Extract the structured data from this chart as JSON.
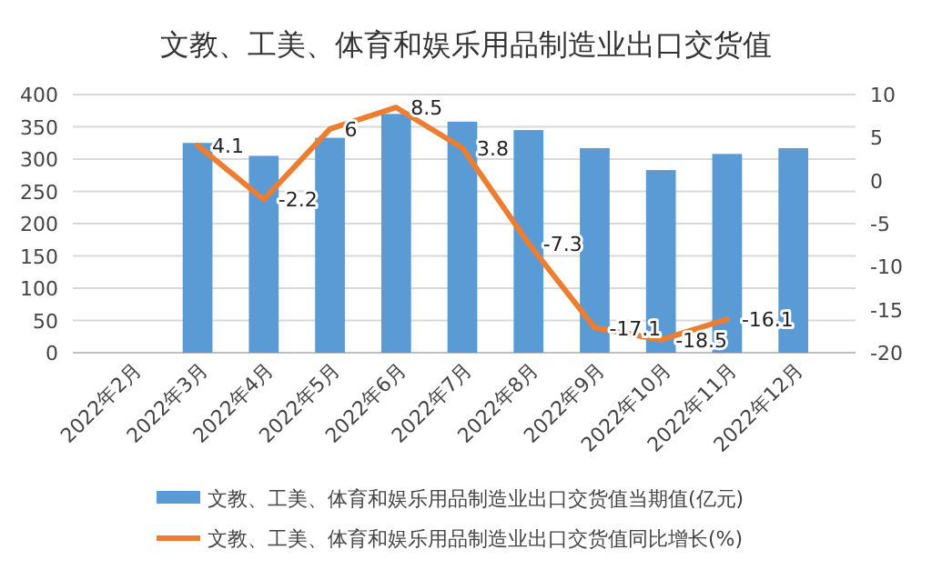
{
  "chart_data": {
    "type": "bar",
    "title": "文教、工美、体育和娱乐用品制造业出口交货值",
    "categories": [
      "2022年2月",
      "2022年3月",
      "2022年4月",
      "2022年5月",
      "2022年6月",
      "2022年7月",
      "2022年8月",
      "2022年9月",
      "2022年10月",
      "2022年11月",
      "2022年12月"
    ],
    "series": [
      {
        "name": "文教、工美、体育和娱乐用品制造业出口交货值当期值(亿元)",
        "color": "#5b9bd5",
        "values": [
          null,
          325,
          305,
          333,
          370,
          358,
          345,
          317,
          283,
          308,
          317
        ]
      },
      {
        "name": "文教、工美、体育和娱乐用品制造业出口交货值同比增长(%)",
        "type": "line",
        "axis": "y2",
        "color": "#ed7d31",
        "values": [
          null,
          4.1,
          -2.2,
          6,
          8.5,
          3.8,
          -7.3,
          -17.1,
          -18.5,
          -16.1,
          null
        ],
        "value_labels": [
          null,
          "4.1",
          "-2.2",
          "6",
          "8.5",
          "3.8",
          "-7.3",
          "-17.1",
          "-18.5",
          "-16.1",
          null
        ]
      }
    ],
    "ylim": [
      0,
      400
    ],
    "yticks": [
      0,
      50,
      100,
      150,
      200,
      250,
      300,
      350,
      400
    ],
    "y2lim": [
      -20,
      10
    ],
    "y2ticks": [
      -20,
      -15,
      -10,
      -5,
      0,
      5,
      10
    ],
    "grid": "y",
    "legend": "bottom",
    "marker": "none",
    "line_style": "solid"
  }
}
